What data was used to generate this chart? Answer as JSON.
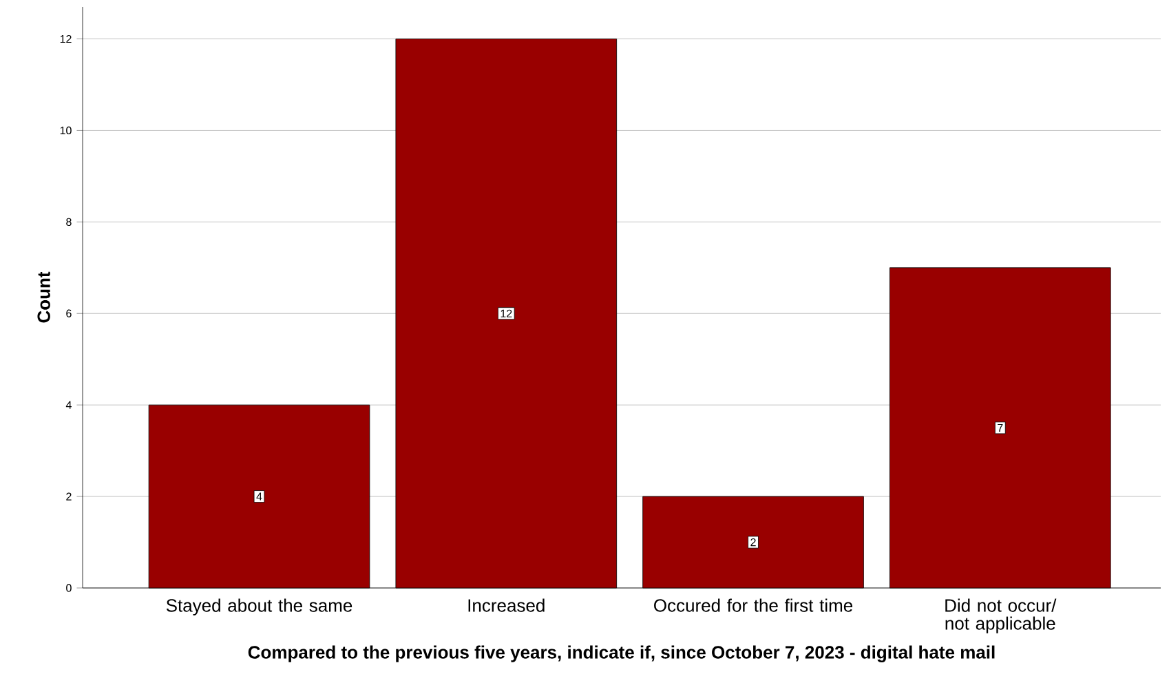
{
  "chart_data": {
    "type": "bar",
    "xlabel": "Compared to the previous five years, indicate if, since October 7, 2023 - digital hate mail",
    "ylabel": "Count",
    "categories": [
      "Stayed about the same",
      "Increased",
      "Occured for the first time",
      "Did not occur/ not applicable"
    ],
    "values": [
      4,
      12,
      2,
      7
    ],
    "color": "#990000",
    "ylim": [
      0,
      12.7
    ],
    "yticks": [
      0,
      2,
      4,
      6,
      8,
      10,
      12
    ],
    "grid": "y",
    "data_labels": true
  }
}
